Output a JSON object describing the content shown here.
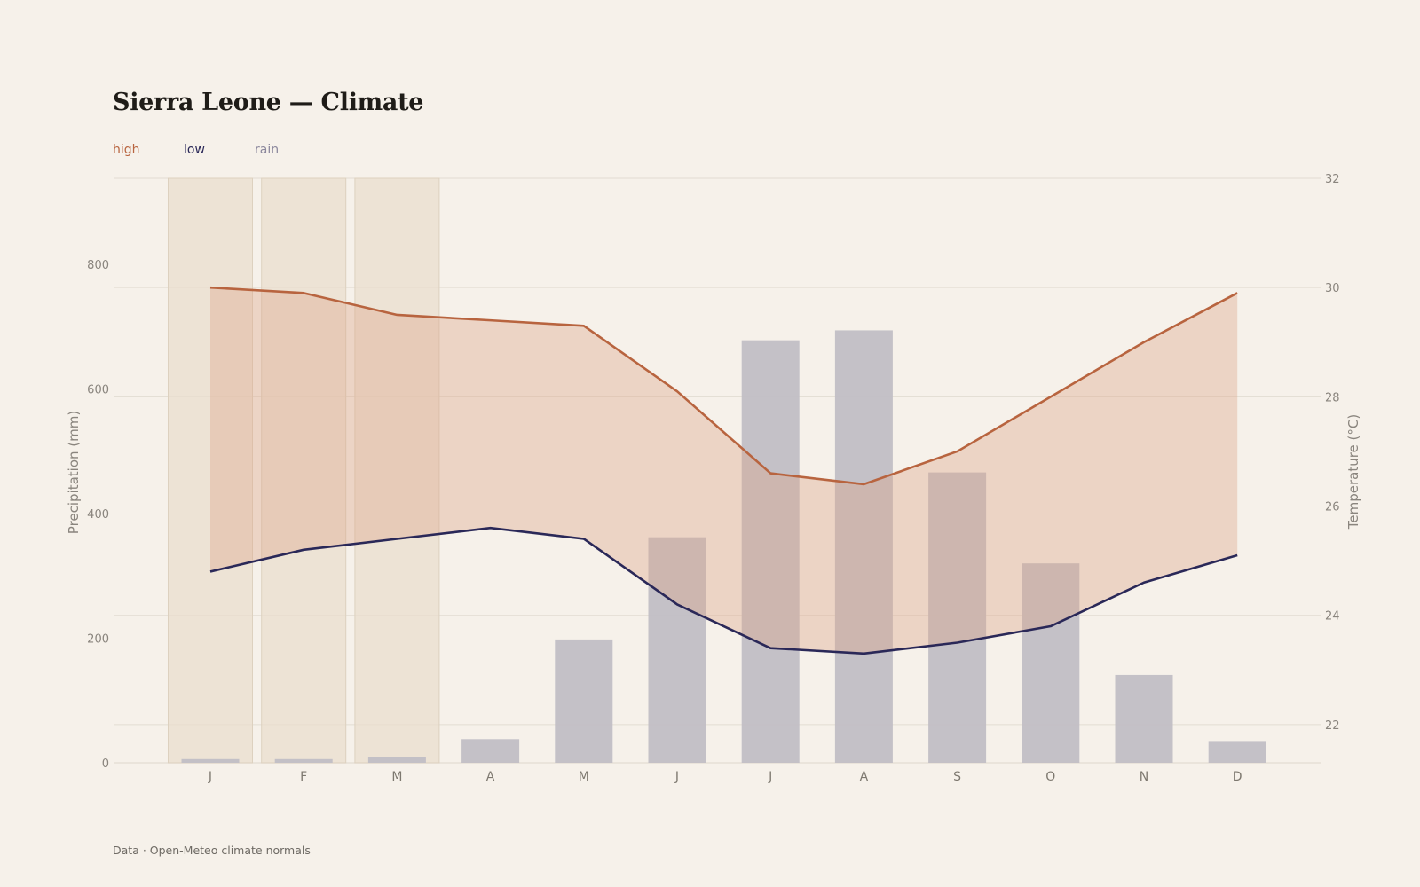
{
  "title": "Sierra Leone — Climate",
  "legend": {
    "high": "high",
    "low": "low",
    "rain": "rain"
  },
  "source": "Data · Open-Meteo climate normals",
  "colors": {
    "background": "#f6f1ea",
    "high": "#b8643f",
    "low": "#2a2858",
    "rain": "#c1bec5",
    "band": "#dca68a",
    "dry_season": "#e9ddcd",
    "grid": "#e2dcd2"
  },
  "chart_data": {
    "type": "bar+line",
    "categories": [
      "J",
      "F",
      "M",
      "A",
      "M",
      "J",
      "J",
      "A",
      "S",
      "O",
      "N",
      "D"
    ],
    "series": [
      {
        "name": "high",
        "axis": "right",
        "values": [
          30.0,
          29.9,
          29.5,
          29.4,
          29.3,
          28.1,
          26.6,
          26.4,
          27.0,
          28.0,
          29.0,
          29.9
        ]
      },
      {
        "name": "low",
        "axis": "right",
        "values": [
          24.8,
          25.2,
          25.4,
          25.6,
          25.4,
          24.2,
          23.4,
          23.3,
          23.5,
          23.8,
          24.6,
          25.1
        ]
      },
      {
        "name": "rain",
        "axis": "left",
        "values": [
          6,
          6,
          9,
          38,
          198,
          362,
          678,
          694,
          466,
          320,
          141,
          35
        ]
      }
    ],
    "dry_season_months": [
      "J",
      "F",
      "M"
    ],
    "y_left": {
      "label": "Precipitation (mm)",
      "ticks": [
        "0",
        "200",
        "400",
        "600",
        "800"
      ],
      "range": [
        0,
        938
      ]
    },
    "y_right": {
      "label": "Temperature (°C)",
      "ticks": [
        "22",
        "24",
        "26",
        "28",
        "30",
        "32"
      ],
      "range": [
        21.3,
        32
      ]
    },
    "grid": true,
    "legend_position": "top-left"
  }
}
